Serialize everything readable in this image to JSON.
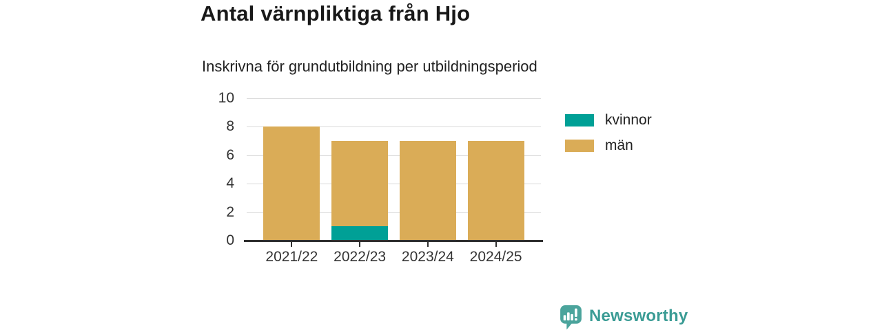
{
  "chart_data": {
    "type": "bar",
    "stacked": true,
    "title": "Antal värnpliktiga från Hjo",
    "subtitle": "Inskrivna för grundutbildning per utbildningsperiod",
    "categories": [
      "2021/22",
      "2022/23",
      "2023/24",
      "2024/25"
    ],
    "series": [
      {
        "name": "kvinnor",
        "color": "#00A096",
        "values": [
          0,
          1,
          0,
          0
        ]
      },
      {
        "name": "män",
        "color": "#DAAC57",
        "values": [
          8,
          6,
          7,
          7
        ]
      }
    ],
    "totals": [
      8,
      7,
      7,
      7
    ],
    "ylim": [
      0,
      10
    ],
    "yticks": [
      0,
      2,
      4,
      6,
      8,
      10
    ],
    "grid": true,
    "legend_position": "right",
    "colors": {
      "grid": "#D9D9D9",
      "axis": "#2F2F2F",
      "tick_text": "#333333",
      "title_text": "#181818",
      "subtitle_text": "#202020"
    }
  },
  "branding": {
    "logo_text": "Newsworthy",
    "logo_color": "#3B9C95",
    "logo_icon": "bar-chart-speech-bubble-icon",
    "logo_icon_color": "#4BA49C"
  }
}
